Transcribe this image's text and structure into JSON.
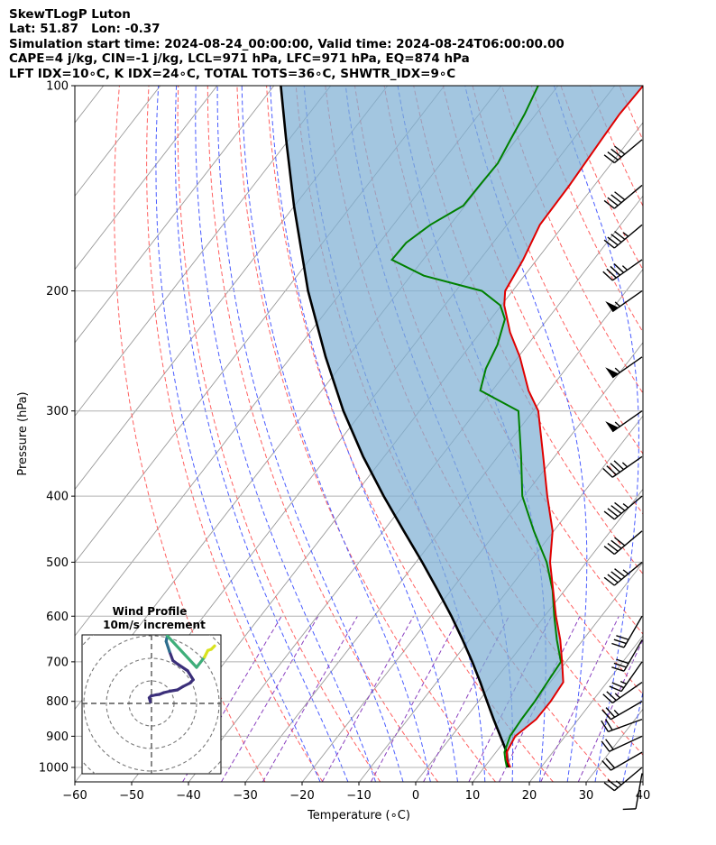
{
  "header": {
    "line1": "SkewTLogP Luton",
    "line2": "Lat: 51.87   Lon: -0.37",
    "line3": "Simulation start time: 2024-08-24_00:00:00, Valid time: 2024-08-24T06:00:00.00",
    "line4": "CAPE=4 j/kg, CIN=-1 j/kg, LCL=971 hPa, LFC=971 hPa, EQ=874 hPa",
    "line5": "LFT IDX=10∘C, K IDX=24∘C, TOTAL TOTS=36∘C, SHWTR_IDX=9∘C"
  },
  "colors": {
    "temperature": "#e00000",
    "dewpoint": "#008000",
    "parcel": "#000000",
    "cape_fill": "#7fb0d4",
    "dry_adiabat": "#ff6060",
    "moist_adiabat": "#4a5cff",
    "mixing_ratio": "#8a3fbf",
    "isotherm": "#9a9a9a",
    "grid": "#b0b0b0"
  },
  "chart_data": {
    "type": "line",
    "title": "",
    "xlabel": "Temperature (∘C)",
    "ylabel": "Pressure (hPa)",
    "xlim": [
      -60,
      40
    ],
    "ylim": [
      1050,
      100
    ],
    "yscale": "log",
    "skew": "skewT",
    "grid": true,
    "x_ticks": [
      -60,
      -50,
      -40,
      -30,
      -20,
      -10,
      0,
      10,
      20,
      30,
      40
    ],
    "x_tick_labels": [
      "−60",
      "−50",
      "−40",
      "−30",
      "−20",
      "−10",
      "0",
      "10",
      "20",
      "30",
      "40"
    ],
    "y_ticks": [
      1000,
      900,
      800,
      700,
      600,
      500,
      400,
      300,
      200,
      100
    ],
    "y_tick_labels": [
      "1000",
      "900",
      "800",
      "700",
      "600",
      "500",
      "400",
      "300",
      "200",
      "100"
    ],
    "series": [
      {
        "role": "temperature",
        "points": [
          [
            1000,
            14.6
          ],
          [
            975,
            13.0
          ],
          [
            950,
            11.9
          ],
          [
            900,
            11.2
          ],
          [
            850,
            12.6
          ],
          [
            800,
            12.7
          ],
          [
            750,
            12.3
          ],
          [
            700,
            9.3
          ],
          [
            650,
            6.0
          ],
          [
            600,
            2.0
          ],
          [
            550,
            -2.0
          ],
          [
            500,
            -6.4
          ],
          [
            450,
            -10.2
          ],
          [
            400,
            -15.9
          ],
          [
            350,
            -22.0
          ],
          [
            300,
            -29.1
          ],
          [
            280,
            -33.6
          ],
          [
            250,
            -39.7
          ],
          [
            230,
            -44.8
          ],
          [
            210,
            -49.5
          ],
          [
            200,
            -51.3
          ],
          [
            180,
            -52.4
          ],
          [
            160,
            -54.2
          ],
          [
            140,
            -54.4
          ],
          [
            120,
            -55.0
          ],
          [
            110,
            -55.3
          ],
          [
            100,
            -55.0
          ]
        ]
      },
      {
        "role": "dewpoint",
        "points": [
          [
            1000,
            14.0
          ],
          [
            975,
            12.7
          ],
          [
            950,
            11.5
          ],
          [
            900,
            10.3
          ],
          [
            850,
            10.0
          ],
          [
            800,
            9.9
          ],
          [
            750,
            9.5
          ],
          [
            700,
            9.1
          ],
          [
            650,
            5.4
          ],
          [
            600,
            1.7
          ],
          [
            550,
            -2.1
          ],
          [
            500,
            -7.0
          ],
          [
            450,
            -13.5
          ],
          [
            400,
            -20.3
          ],
          [
            350,
            -25.9
          ],
          [
            300,
            -32.6
          ],
          [
            280,
            -42.1
          ],
          [
            260,
            -44.1
          ],
          [
            240,
            -45.3
          ],
          [
            220,
            -47.5
          ],
          [
            210,
            -50.2
          ],
          [
            200,
            -55.4
          ],
          [
            190,
            -67.7
          ],
          [
            180,
            -75.5
          ],
          [
            170,
            -75.3
          ],
          [
            160,
            -73.5
          ],
          [
            150,
            -70.3
          ],
          [
            140,
            -70.2
          ],
          [
            130,
            -70.0
          ],
          [
            120,
            -71.0
          ],
          [
            110,
            -72.0
          ],
          [
            100,
            -73.5
          ]
        ]
      },
      {
        "role": "parcel",
        "points": [
          [
            1000,
            14.2
          ],
          [
            950,
            11.9
          ],
          [
            900,
            8.6
          ],
          [
            850,
            5.1
          ],
          [
            800,
            1.5
          ],
          [
            750,
            -2.3
          ],
          [
            700,
            -6.5
          ],
          [
            650,
            -11.2
          ],
          [
            600,
            -16.4
          ],
          [
            550,
            -22.3
          ],
          [
            500,
            -28.9
          ],
          [
            450,
            -36.4
          ],
          [
            400,
            -44.7
          ],
          [
            350,
            -53.7
          ],
          [
            300,
            -63.4
          ],
          [
            250,
            -73.9
          ],
          [
            200,
            -86.0
          ],
          [
            150,
            -100.1
          ],
          [
            120,
            -110.5
          ],
          [
            100,
            -118.8
          ]
        ]
      }
    ],
    "wind_barbs": [
      {
        "p": 1020,
        "speed_kt": 10,
        "dir_deg": 190
      },
      {
        "p": 1000,
        "speed_kt": 25,
        "dir_deg": 230
      },
      {
        "p": 950,
        "speed_kt": 20,
        "dir_deg": 240
      },
      {
        "p": 900,
        "speed_kt": 20,
        "dir_deg": 245
      },
      {
        "p": 850,
        "speed_kt": 20,
        "dir_deg": 250
      },
      {
        "p": 800,
        "speed_kt": 25,
        "dir_deg": 240
      },
      {
        "p": 750,
        "speed_kt": 25,
        "dir_deg": 235
      },
      {
        "p": 700,
        "speed_kt": 25,
        "dir_deg": 215
      },
      {
        "p": 650,
        "speed_kt": 30,
        "dir_deg": 210
      },
      {
        "p": 600,
        "speed_kt": 30,
        "dir_deg": 210
      },
      {
        "p": 500,
        "speed_kt": 45,
        "dir_deg": 230
      },
      {
        "p": 450,
        "speed_kt": 40,
        "dir_deg": 230
      },
      {
        "p": 400,
        "speed_kt": 45,
        "dir_deg": 230
      },
      {
        "p": 350,
        "speed_kt": 45,
        "dir_deg": 235
      },
      {
        "p": 300,
        "speed_kt": 55,
        "dir_deg": 235
      },
      {
        "p": 250,
        "speed_kt": 55,
        "dir_deg": 235
      },
      {
        "p": 200,
        "speed_kt": 55,
        "dir_deg": 235
      },
      {
        "p": 180,
        "speed_kt": 45,
        "dir_deg": 235
      },
      {
        "p": 160,
        "speed_kt": 45,
        "dir_deg": 230
      },
      {
        "p": 140,
        "speed_kt": 40,
        "dir_deg": 230
      },
      {
        "p": 120,
        "speed_kt": 40,
        "dir_deg": 230
      }
    ],
    "inset": {
      "title_line1": "Wind Profile",
      "title_line2": "10m/s increment",
      "ring_increment_ms": 10,
      "hodograph_uv": [
        [
          -0.5,
          0.7
        ],
        [
          -1.0,
          2.5
        ],
        [
          -0.2,
          3.3
        ],
        [
          2.0,
          3.8
        ],
        [
          3.5,
          4.0
        ],
        [
          5.5,
          4.8
        ],
        [
          8.5,
          5.5
        ],
        [
          11.5,
          6.0
        ],
        [
          14.0,
          7.5
        ],
        [
          17.0,
          9.0
        ],
        [
          18.5,
          10.5
        ],
        [
          16.0,
          14.5
        ],
        [
          11.5,
          17.5
        ],
        [
          9.5,
          19.0
        ],
        [
          8.0,
          23.0
        ],
        [
          6.5,
          27.5
        ],
        [
          7.0,
          30.0
        ],
        [
          20.0,
          16.0
        ],
        [
          23.5,
          20.5
        ],
        [
          25.0,
          23.5
        ],
        [
          26.5,
          24.0
        ],
        [
          28.0,
          25.5
        ]
      ]
    }
  }
}
